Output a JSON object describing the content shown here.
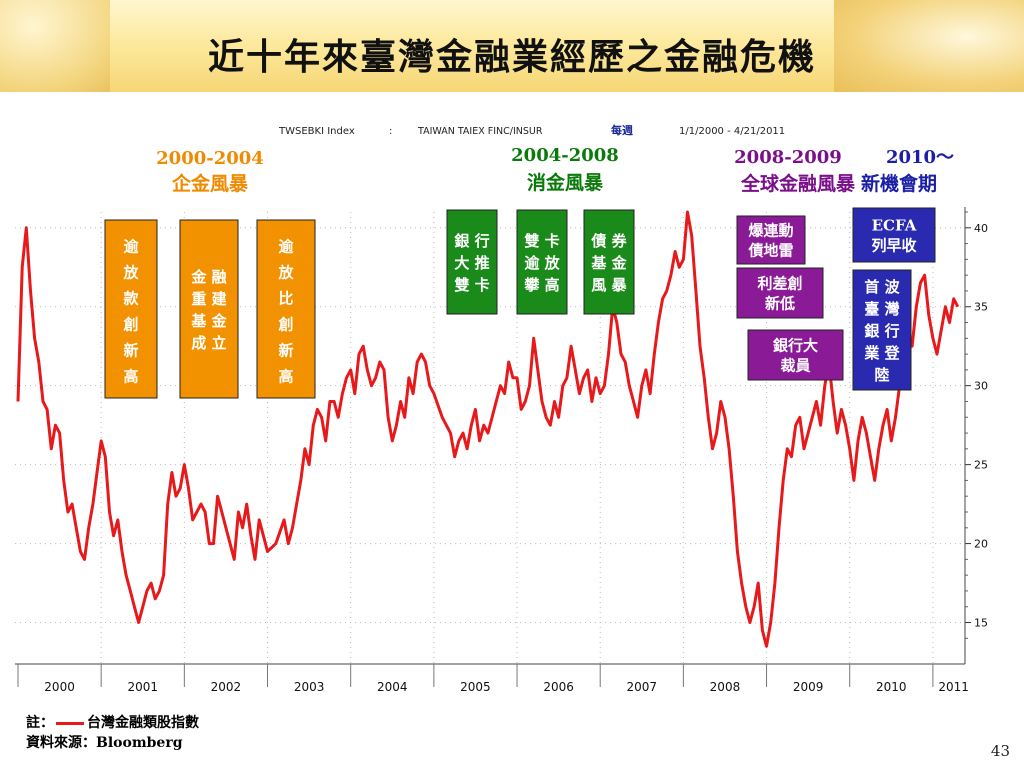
{
  "slide": {
    "title": "近十年來臺灣金融業經歷之金融危機",
    "page_number": "43",
    "note_prefix": "註：",
    "note_legend": "台灣金融類股指數",
    "source": "資料來源：Bloomberg"
  },
  "terminal_header": {
    "ticker": "TWSEBKI Index",
    "separator": ":",
    "description": "TAIWAN TAIEX FINC/INSUR",
    "frequency": "每週",
    "date_range": "1/1/2000 - 4/21/2011"
  },
  "eras": [
    {
      "years": "2000-2004",
      "name": "企金風暴",
      "color": "#f08a00"
    },
    {
      "years": "2004-2008",
      "name": "消金風暴",
      "color": "#0a7a0a"
    },
    {
      "years": "2008-2009",
      "name": "全球金融風暴",
      "color": "#7b0e8a"
    },
    {
      "years": "2010～",
      "name": "新機會期",
      "color": "#1c1ea6"
    }
  ],
  "events": [
    {
      "text": "逾放款創新高",
      "era": "2000-2004",
      "color": "#f39200"
    },
    {
      "text": "金融重建基金成立",
      "era": "2000-2004",
      "color": "#f39200"
    },
    {
      "text": "逾放比創新高",
      "era": "2000-2004",
      "color": "#f39200"
    },
    {
      "text": "銀行大推雙卡",
      "era": "2004-2008",
      "color": "#1a8a1a"
    },
    {
      "text": "雙卡逾放攀高",
      "era": "2004-2008",
      "color": "#1a8a1a"
    },
    {
      "text": "債券基金風暴",
      "era": "2004-2008",
      "color": "#1a8a1a"
    },
    {
      "text": "爆連動債地雷",
      "era": "2008-2009",
      "color": "#8a1a96"
    },
    {
      "text": "利差創新低",
      "era": "2008-2009",
      "color": "#8a1a96"
    },
    {
      "text": "銀行大裁員",
      "era": "2008-2009",
      "color": "#8a1a96"
    },
    {
      "text": "ECFA列早收",
      "era": "2010～",
      "color": "#2a2ab0"
    },
    {
      "text": "首波臺灣銀行業登陸",
      "era": "2010～",
      "color": "#2a2ab0"
    }
  ],
  "chart_data": {
    "type": "line",
    "title": "TWSEBKI Index : TAIWAN TAIEX FINC/INSUR",
    "xlabel": "",
    "ylabel": "",
    "x_ticks": [
      "2000",
      "2001",
      "2002",
      "2003",
      "2004",
      "2005",
      "2006",
      "2007",
      "2008",
      "2009",
      "2010",
      "2011"
    ],
    "y_ticks": [
      15,
      20,
      25,
      30,
      35,
      40
    ],
    "ylim": [
      12.5,
      41
    ],
    "xlim": [
      2000.0,
      2011.35
    ],
    "grid": true,
    "line_color": "#e8191b",
    "series": [
      {
        "name": "台灣金融類股指數",
        "x": [
          2000.0,
          2000.05,
          2000.1,
          2000.15,
          2000.2,
          2000.25,
          2000.3,
          2000.35,
          2000.4,
          2000.45,
          2000.5,
          2000.55,
          2000.6,
          2000.65,
          2000.7,
          2000.75,
          2000.8,
          2000.85,
          2000.9,
          2000.95,
          2001.0,
          2001.05,
          2001.1,
          2001.15,
          2001.2,
          2001.25,
          2001.3,
          2001.35,
          2001.4,
          2001.45,
          2001.5,
          2001.55,
          2001.6,
          2001.65,
          2001.7,
          2001.75,
          2001.8,
          2001.85,
          2001.9,
          2001.95,
          2002.0,
          2002.05,
          2002.1,
          2002.15,
          2002.2,
          2002.25,
          2002.3,
          2002.35,
          2002.4,
          2002.45,
          2002.5,
          2002.55,
          2002.6,
          2002.65,
          2002.7,
          2002.75,
          2002.8,
          2002.85,
          2002.9,
          2002.95,
          2003.0,
          2003.1,
          2003.2,
          2003.25,
          2003.3,
          2003.35,
          2003.4,
          2003.45,
          2003.5,
          2003.55,
          2003.6,
          2003.65,
          2003.7,
          2003.75,
          2003.8,
          2003.85,
          2003.9,
          2003.95,
          2004.0,
          2004.05,
          2004.1,
          2004.15,
          2004.2,
          2004.25,
          2004.3,
          2004.35,
          2004.4,
          2004.45,
          2004.5,
          2004.55,
          2004.6,
          2004.65,
          2004.7,
          2004.75,
          2004.8,
          2004.85,
          2004.9,
          2004.95,
          2005.0,
          2005.1,
          2005.2,
          2005.25,
          2005.3,
          2005.35,
          2005.4,
          2005.45,
          2005.5,
          2005.55,
          2005.6,
          2005.65,
          2005.7,
          2005.75,
          2005.8,
          2005.85,
          2005.9,
          2005.95,
          2006.0,
          2006.05,
          2006.1,
          2006.15,
          2006.2,
          2006.25,
          2006.3,
          2006.35,
          2006.4,
          2006.45,
          2006.5,
          2006.55,
          2006.6,
          2006.65,
          2006.7,
          2006.75,
          2006.8,
          2006.85,
          2006.9,
          2006.95,
          2007.0,
          2007.05,
          2007.1,
          2007.15,
          2007.2,
          2007.25,
          2007.3,
          2007.35,
          2007.4,
          2007.45,
          2007.5,
          2007.55,
          2007.6,
          2007.65,
          2007.7,
          2007.75,
          2007.8,
          2007.85,
          2007.9,
          2007.95,
          2008.0,
          2008.05,
          2008.1,
          2008.15,
          2008.2,
          2008.25,
          2008.3,
          2008.35,
          2008.4,
          2008.45,
          2008.5,
          2008.55,
          2008.6,
          2008.65,
          2008.7,
          2008.75,
          2008.8,
          2008.85,
          2008.9,
          2008.95,
          2009.0,
          2009.05,
          2009.1,
          2009.15,
          2009.2,
          2009.25,
          2009.3,
          2009.35,
          2009.4,
          2009.45,
          2009.5,
          2009.55,
          2009.6,
          2009.65,
          2009.7,
          2009.75,
          2009.8,
          2009.85,
          2009.9,
          2009.95,
          2010.0,
          2010.05,
          2010.1,
          2010.15,
          2010.2,
          2010.25,
          2010.3,
          2010.35,
          2010.4,
          2010.45,
          2010.5,
          2010.55,
          2010.6,
          2010.65,
          2010.7,
          2010.75,
          2010.8,
          2010.85,
          2010.9,
          2010.95,
          2011.0,
          2011.05,
          2011.1,
          2011.15,
          2011.2,
          2011.25,
          2011.3
        ],
        "values": [
          29,
          37.5,
          40,
          36,
          33,
          31.5,
          29,
          28.5,
          26,
          27.5,
          27,
          24,
          22,
          22.5,
          21,
          19.5,
          19,
          21,
          22.5,
          24.5,
          26.5,
          25.5,
          22,
          20.5,
          21.5,
          19.5,
          18,
          17,
          16,
          15,
          16,
          17,
          17.5,
          16.5,
          17,
          18,
          22.5,
          24.5,
          23,
          23.5,
          25,
          23.5,
          21.5,
          22,
          22.5,
          22,
          20,
          20,
          23,
          22,
          21,
          20,
          19,
          22,
          21,
          22.5,
          20.5,
          19,
          21.5,
          20.5,
          19.5,
          20,
          21.5,
          20,
          21,
          22.5,
          24,
          26,
          25,
          27.5,
          28.5,
          28,
          26.5,
          29,
          29,
          28,
          29.5,
          30.5,
          31,
          29.5,
          32,
          32.5,
          31,
          30,
          30.5,
          31.5,
          31,
          28,
          26.5,
          27.5,
          29,
          28,
          30.5,
          29.5,
          31.5,
          32,
          31.5,
          30,
          29.5,
          28,
          27,
          25.5,
          26.5,
          27,
          26,
          27.5,
          28.5,
          26.5,
          27.5,
          27,
          28,
          29,
          30,
          29.5,
          31.5,
          30.5,
          30.5,
          28.5,
          29,
          30,
          33,
          31,
          29,
          28,
          27.5,
          29,
          28,
          30,
          30.5,
          32.5,
          31,
          29.5,
          30.5,
          31,
          29,
          30.5,
          29.5,
          30,
          32,
          35,
          34,
          32,
          31.5,
          30,
          29,
          28,
          30,
          31,
          29.5,
          32,
          34,
          35.5,
          36,
          37,
          38.5,
          37.5,
          38,
          41,
          39.5,
          36,
          32.5,
          30.5,
          28,
          26,
          27,
          29,
          28,
          26,
          23,
          19.5,
          17.5,
          16,
          15,
          16,
          17.5,
          14.5,
          13.5,
          15,
          17.5,
          21,
          24,
          26,
          25.5,
          27.5,
          28,
          26,
          27,
          28,
          29,
          27.5,
          30,
          31.5,
          29,
          27,
          28.5,
          27.5,
          26,
          24,
          26.5,
          28,
          27,
          25.5,
          24,
          26,
          27.5,
          28.5,
          26.5,
          28,
          30,
          32,
          33,
          32.5,
          35,
          36.5,
          37,
          34.5,
          33,
          32,
          33.5,
          35,
          34,
          35.5,
          35
        ]
      }
    ]
  }
}
